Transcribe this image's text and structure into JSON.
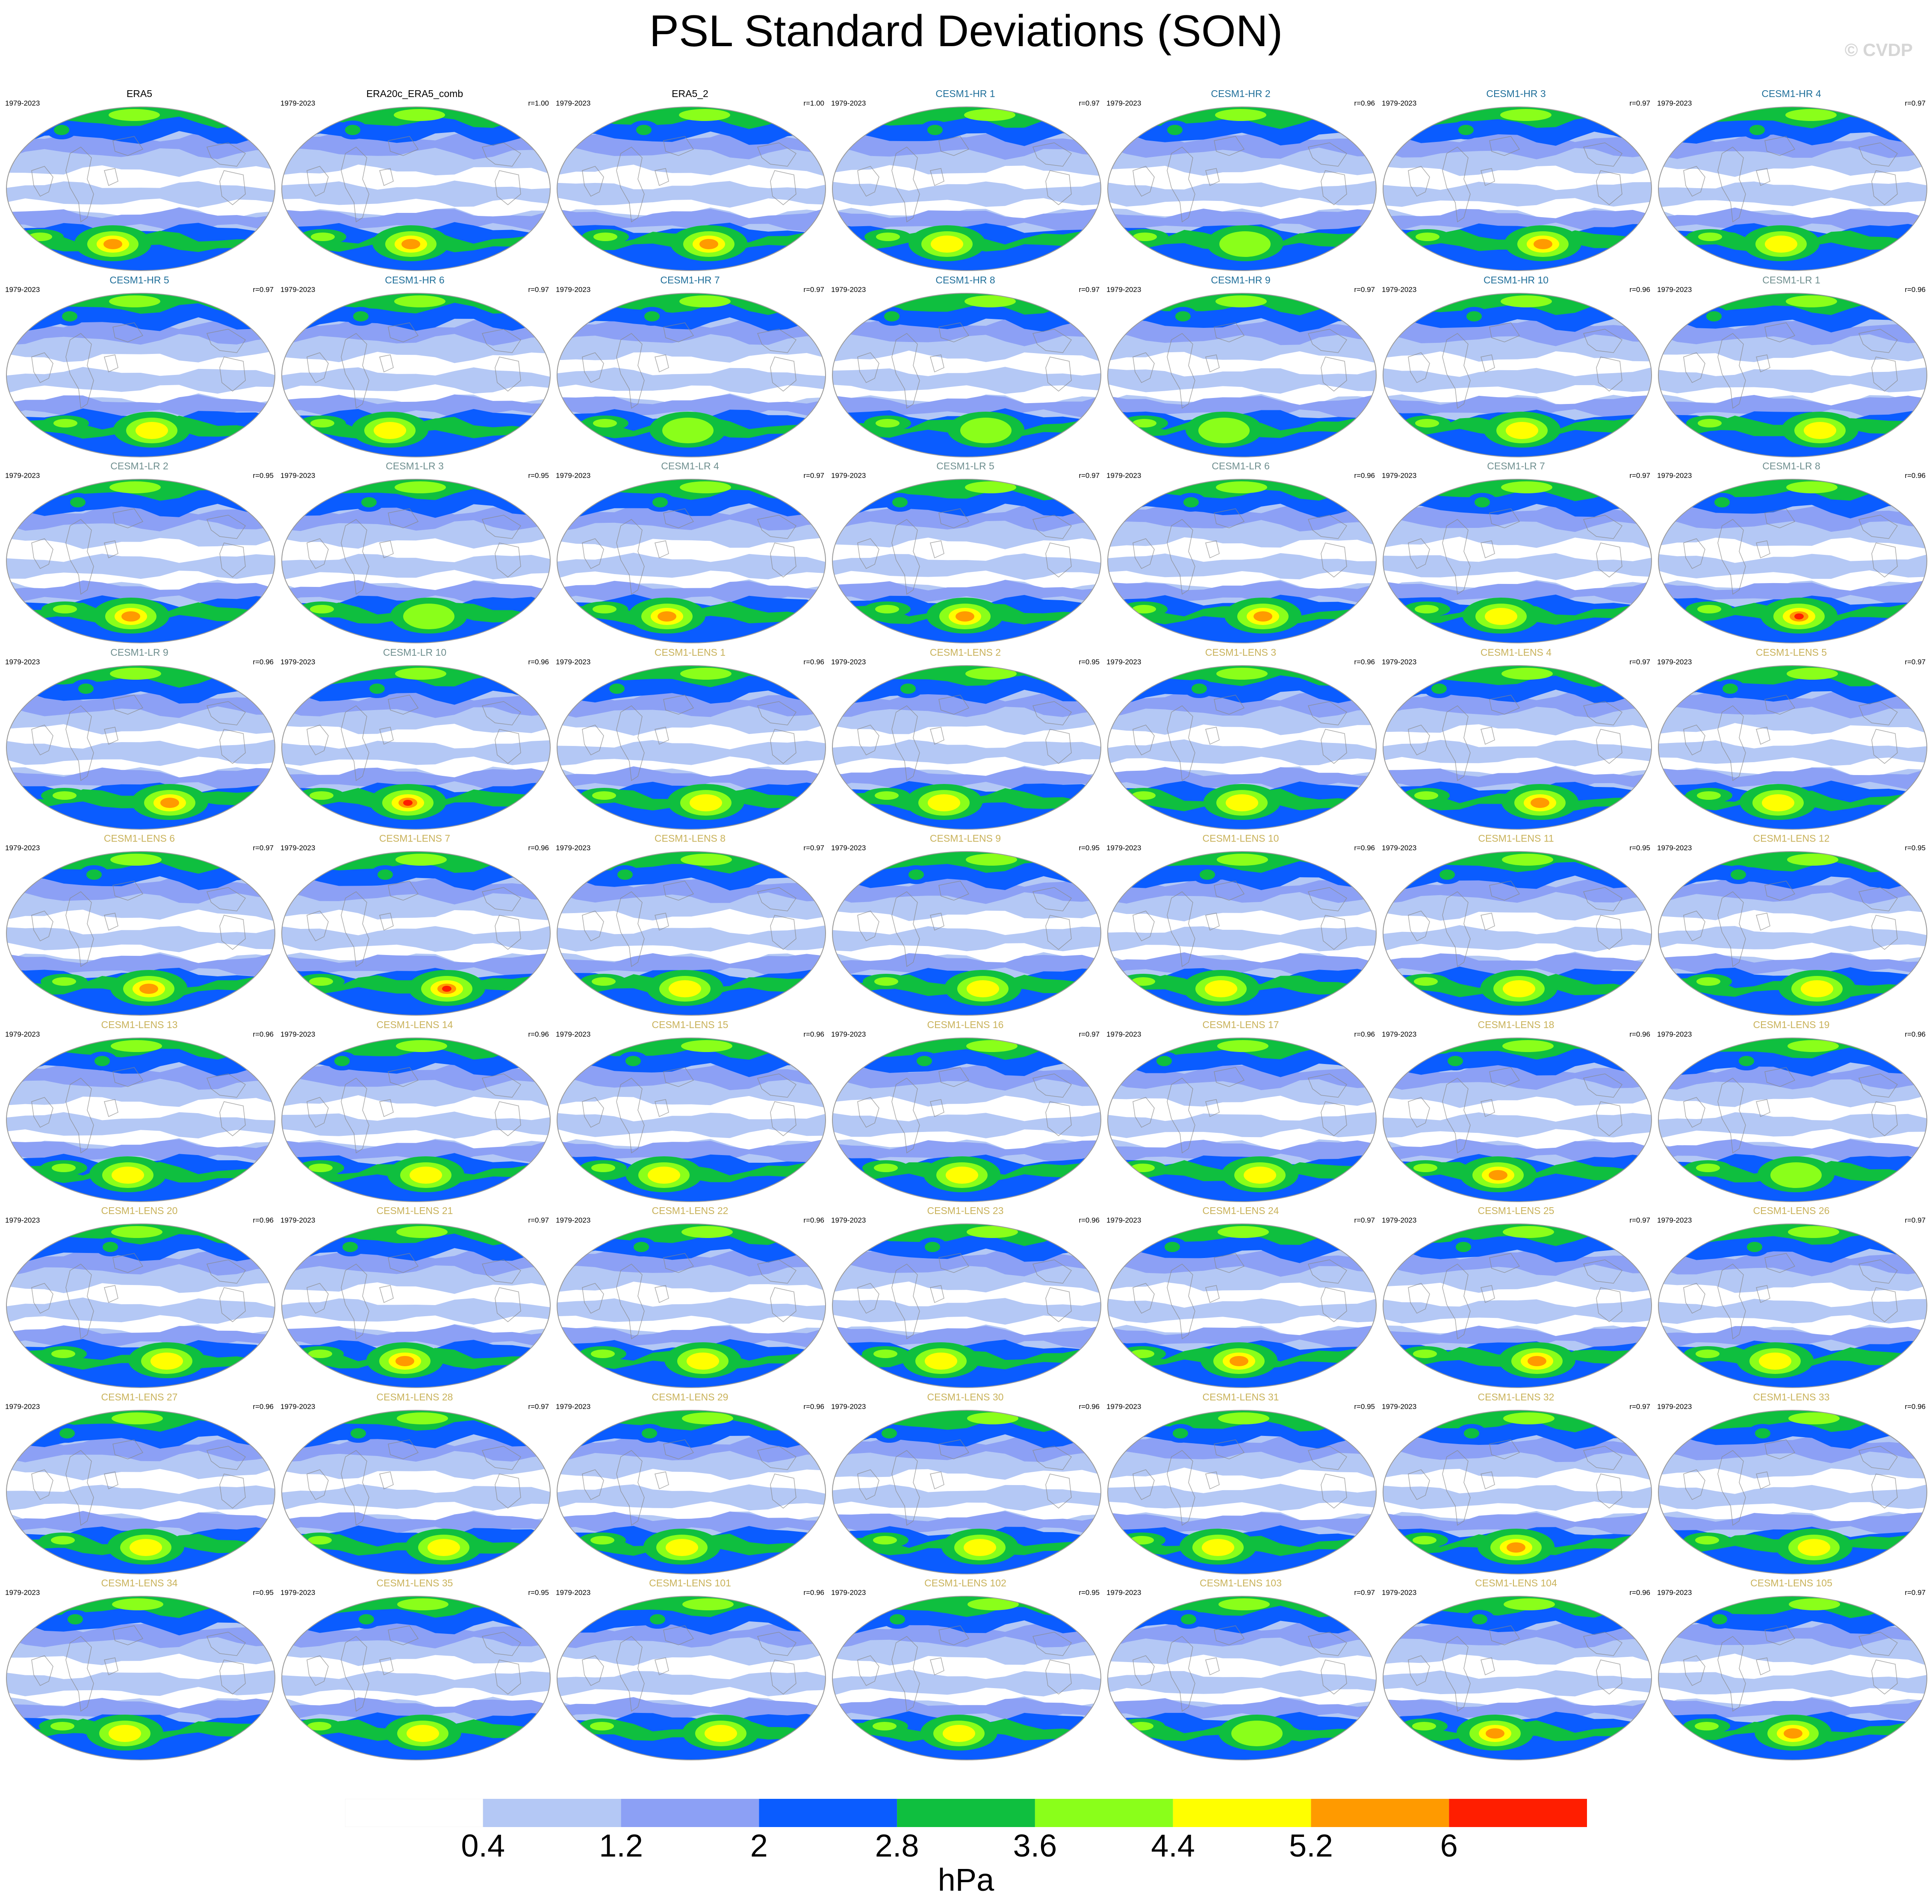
{
  "title": "PSL Standard Deviations (SON)",
  "watermark": "© CVDP",
  "units": "hPa",
  "colorbar": {
    "levels": [
      "0.4",
      "1.2",
      "2",
      "2.8",
      "3.6",
      "4.4",
      "5.2",
      "6"
    ],
    "colors": [
      "#ffffff",
      "#b4c8f5",
      "#8ca0f5",
      "#0a5cff",
      "#0fbf3f",
      "#8aff1a",
      "#ffff00",
      "#ff9a00",
      "#ff1e00"
    ]
  },
  "panels": [
    {
      "name": "ERA5",
      "years": "1979-2023",
      "r": "",
      "group": "obs",
      "intensity": 2
    },
    {
      "name": "ERA20c_ERA5_comb",
      "years": "1979-2023",
      "r": "r=1.00",
      "group": "obs",
      "intensity": 2
    },
    {
      "name": "ERA5_2",
      "years": "1979-2023",
      "r": "r=1.00",
      "group": "obs",
      "intensity": 2
    },
    {
      "name": "CESM1-HR 1",
      "years": "1979-2023",
      "r": "r=0.97",
      "group": "hr",
      "intensity": 1
    },
    {
      "name": "CESM1-HR 2",
      "years": "1979-2023",
      "r": "r=0.96",
      "group": "hr",
      "intensity": 0
    },
    {
      "name": "CESM1-HR 3",
      "years": "1979-2023",
      "r": "r=0.97",
      "group": "hr",
      "intensity": 2
    },
    {
      "name": "CESM1-HR 4",
      "years": "1979-2023",
      "r": "r=0.97",
      "group": "hr",
      "intensity": 1
    },
    {
      "name": "CESM1-HR 5",
      "years": "1979-2023",
      "r": "r=0.97",
      "group": "hr",
      "intensity": 1
    },
    {
      "name": "CESM1-HR 6",
      "years": "1979-2023",
      "r": "r=0.97",
      "group": "hr",
      "intensity": 1
    },
    {
      "name": "CESM1-HR 7",
      "years": "1979-2023",
      "r": "r=0.97",
      "group": "hr",
      "intensity": 0
    },
    {
      "name": "CESM1-HR 8",
      "years": "1979-2023",
      "r": "r=0.97",
      "group": "hr",
      "intensity": 0
    },
    {
      "name": "CESM1-HR 9",
      "years": "1979-2023",
      "r": "r=0.97",
      "group": "hr",
      "intensity": 0
    },
    {
      "name": "CESM1-HR 10",
      "years": "1979-2023",
      "r": "r=0.96",
      "group": "hr",
      "intensity": 1
    },
    {
      "name": "CESM1-LR 1",
      "years": "1979-2023",
      "r": "r=0.96",
      "group": "lr",
      "intensity": 1
    },
    {
      "name": "CESM1-LR 2",
      "years": "1979-2023",
      "r": "r=0.95",
      "group": "lr",
      "intensity": 2
    },
    {
      "name": "CESM1-LR 3",
      "years": "1979-2023",
      "r": "r=0.95",
      "group": "lr",
      "intensity": 0
    },
    {
      "name": "CESM1-LR 4",
      "years": "1979-2023",
      "r": "r=0.97",
      "group": "lr",
      "intensity": 2
    },
    {
      "name": "CESM1-LR 5",
      "years": "1979-2023",
      "r": "r=0.97",
      "group": "lr",
      "intensity": 2
    },
    {
      "name": "CESM1-LR 6",
      "years": "1979-2023",
      "r": "r=0.96",
      "group": "lr",
      "intensity": 2
    },
    {
      "name": "CESM1-LR 7",
      "years": "1979-2023",
      "r": "r=0.97",
      "group": "lr",
      "intensity": 1
    },
    {
      "name": "CESM1-LR 8",
      "years": "1979-2023",
      "r": "r=0.96",
      "group": "lr",
      "intensity": 3
    },
    {
      "name": "CESM1-LR 9",
      "years": "1979-2023",
      "r": "r=0.96",
      "group": "lr",
      "intensity": 2
    },
    {
      "name": "CESM1-LR 10",
      "years": "1979-2023",
      "r": "r=0.96",
      "group": "lr",
      "intensity": 3
    },
    {
      "name": "CESM1-LENS 1",
      "years": "1979-2023",
      "r": "r=0.96",
      "group": "lens",
      "intensity": 1
    },
    {
      "name": "CESM1-LENS 2",
      "years": "1979-2023",
      "r": "r=0.95",
      "group": "lens",
      "intensity": 1
    },
    {
      "name": "CESM1-LENS 3",
      "years": "1979-2023",
      "r": "r=0.96",
      "group": "lens",
      "intensity": 1
    },
    {
      "name": "CESM1-LENS 4",
      "years": "1979-2023",
      "r": "r=0.97",
      "group": "lens",
      "intensity": 2
    },
    {
      "name": "CESM1-LENS 5",
      "years": "1979-2023",
      "r": "r=0.97",
      "group": "lens",
      "intensity": 1
    },
    {
      "name": "CESM1-LENS 6",
      "years": "1979-2023",
      "r": "r=0.97",
      "group": "lens",
      "intensity": 2
    },
    {
      "name": "CESM1-LENS 7",
      "years": "1979-2023",
      "r": "r=0.96",
      "group": "lens",
      "intensity": 3
    },
    {
      "name": "CESM1-LENS 8",
      "years": "1979-2023",
      "r": "r=0.97",
      "group": "lens",
      "intensity": 1
    },
    {
      "name": "CESM1-LENS 9",
      "years": "1979-2023",
      "r": "r=0.95",
      "group": "lens",
      "intensity": 1
    },
    {
      "name": "CESM1-LENS 10",
      "years": "1979-2023",
      "r": "r=0.96",
      "group": "lens",
      "intensity": 1
    },
    {
      "name": "CESM1-LENS 11",
      "years": "1979-2023",
      "r": "r=0.95",
      "group": "lens",
      "intensity": 1
    },
    {
      "name": "CESM1-LENS 12",
      "years": "1979-2023",
      "r": "r=0.95",
      "group": "lens",
      "intensity": 1
    },
    {
      "name": "CESM1-LENS 13",
      "years": "1979-2023",
      "r": "r=0.96",
      "group": "lens",
      "intensity": 1
    },
    {
      "name": "CESM1-LENS 14",
      "years": "1979-2023",
      "r": "r=0.96",
      "group": "lens",
      "intensity": 1
    },
    {
      "name": "CESM1-LENS 15",
      "years": "1979-2023",
      "r": "r=0.96",
      "group": "lens",
      "intensity": 1
    },
    {
      "name": "CESM1-LENS 16",
      "years": "1979-2023",
      "r": "r=0.97",
      "group": "lens",
      "intensity": 1
    },
    {
      "name": "CESM1-LENS 17",
      "years": "1979-2023",
      "r": "r=0.96",
      "group": "lens",
      "intensity": 1
    },
    {
      "name": "CESM1-LENS 18",
      "years": "1979-2023",
      "r": "r=0.96",
      "group": "lens",
      "intensity": 2
    },
    {
      "name": "CESM1-LENS 19",
      "years": "1979-2023",
      "r": "r=0.96",
      "group": "lens",
      "intensity": 0
    },
    {
      "name": "CESM1-LENS 20",
      "years": "1979-2023",
      "r": "r=0.96",
      "group": "lens",
      "intensity": 1
    },
    {
      "name": "CESM1-LENS 21",
      "years": "1979-2023",
      "r": "r=0.97",
      "group": "lens",
      "intensity": 2
    },
    {
      "name": "CESM1-LENS 22",
      "years": "1979-2023",
      "r": "r=0.96",
      "group": "lens",
      "intensity": 1
    },
    {
      "name": "CESM1-LENS 23",
      "years": "1979-2023",
      "r": "r=0.96",
      "group": "lens",
      "intensity": 1
    },
    {
      "name": "CESM1-LENS 24",
      "years": "1979-2023",
      "r": "r=0.97",
      "group": "lens",
      "intensity": 2
    },
    {
      "name": "CESM1-LENS 25",
      "years": "1979-2023",
      "r": "r=0.97",
      "group": "lens",
      "intensity": 2
    },
    {
      "name": "CESM1-LENS 26",
      "years": "1979-2023",
      "r": "r=0.97",
      "group": "lens",
      "intensity": 1
    },
    {
      "name": "CESM1-LENS 27",
      "years": "1979-2023",
      "r": "r=0.96",
      "group": "lens",
      "intensity": 1
    },
    {
      "name": "CESM1-LENS 28",
      "years": "1979-2023",
      "r": "r=0.97",
      "group": "lens",
      "intensity": 1
    },
    {
      "name": "CESM1-LENS 29",
      "years": "1979-2023",
      "r": "r=0.96",
      "group": "lens",
      "intensity": 1
    },
    {
      "name": "CESM1-LENS 30",
      "years": "1979-2023",
      "r": "r=0.96",
      "group": "lens",
      "intensity": 1
    },
    {
      "name": "CESM1-LENS 31",
      "years": "1979-2023",
      "r": "r=0.95",
      "group": "lens",
      "intensity": 1
    },
    {
      "name": "CESM1-LENS 32",
      "years": "1979-2023",
      "r": "r=0.97",
      "group": "lens",
      "intensity": 2
    },
    {
      "name": "CESM1-LENS 33",
      "years": "1979-2023",
      "r": "r=0.96",
      "group": "lens",
      "intensity": 1
    },
    {
      "name": "CESM1-LENS 34",
      "years": "1979-2023",
      "r": "r=0.95",
      "group": "lens",
      "intensity": 1
    },
    {
      "name": "CESM1-LENS 35",
      "years": "1979-2023",
      "r": "r=0.95",
      "group": "lens",
      "intensity": 1
    },
    {
      "name": "CESM1-LENS 101",
      "years": "1979-2023",
      "r": "r=0.96",
      "group": "lens",
      "intensity": 1
    },
    {
      "name": "CESM1-LENS 102",
      "years": "1979-2023",
      "r": "r=0.95",
      "group": "lens",
      "intensity": 1
    },
    {
      "name": "CESM1-LENS 103",
      "years": "1979-2023",
      "r": "r=0.97",
      "group": "lens",
      "intensity": 0
    },
    {
      "name": "CESM1-LENS 104",
      "years": "1979-2023",
      "r": "r=0.96",
      "group": "lens",
      "intensity": 2
    },
    {
      "name": "CESM1-LENS 105",
      "years": "1979-2023",
      "r": "r=0.97",
      "group": "lens",
      "intensity": 2
    }
  ]
}
